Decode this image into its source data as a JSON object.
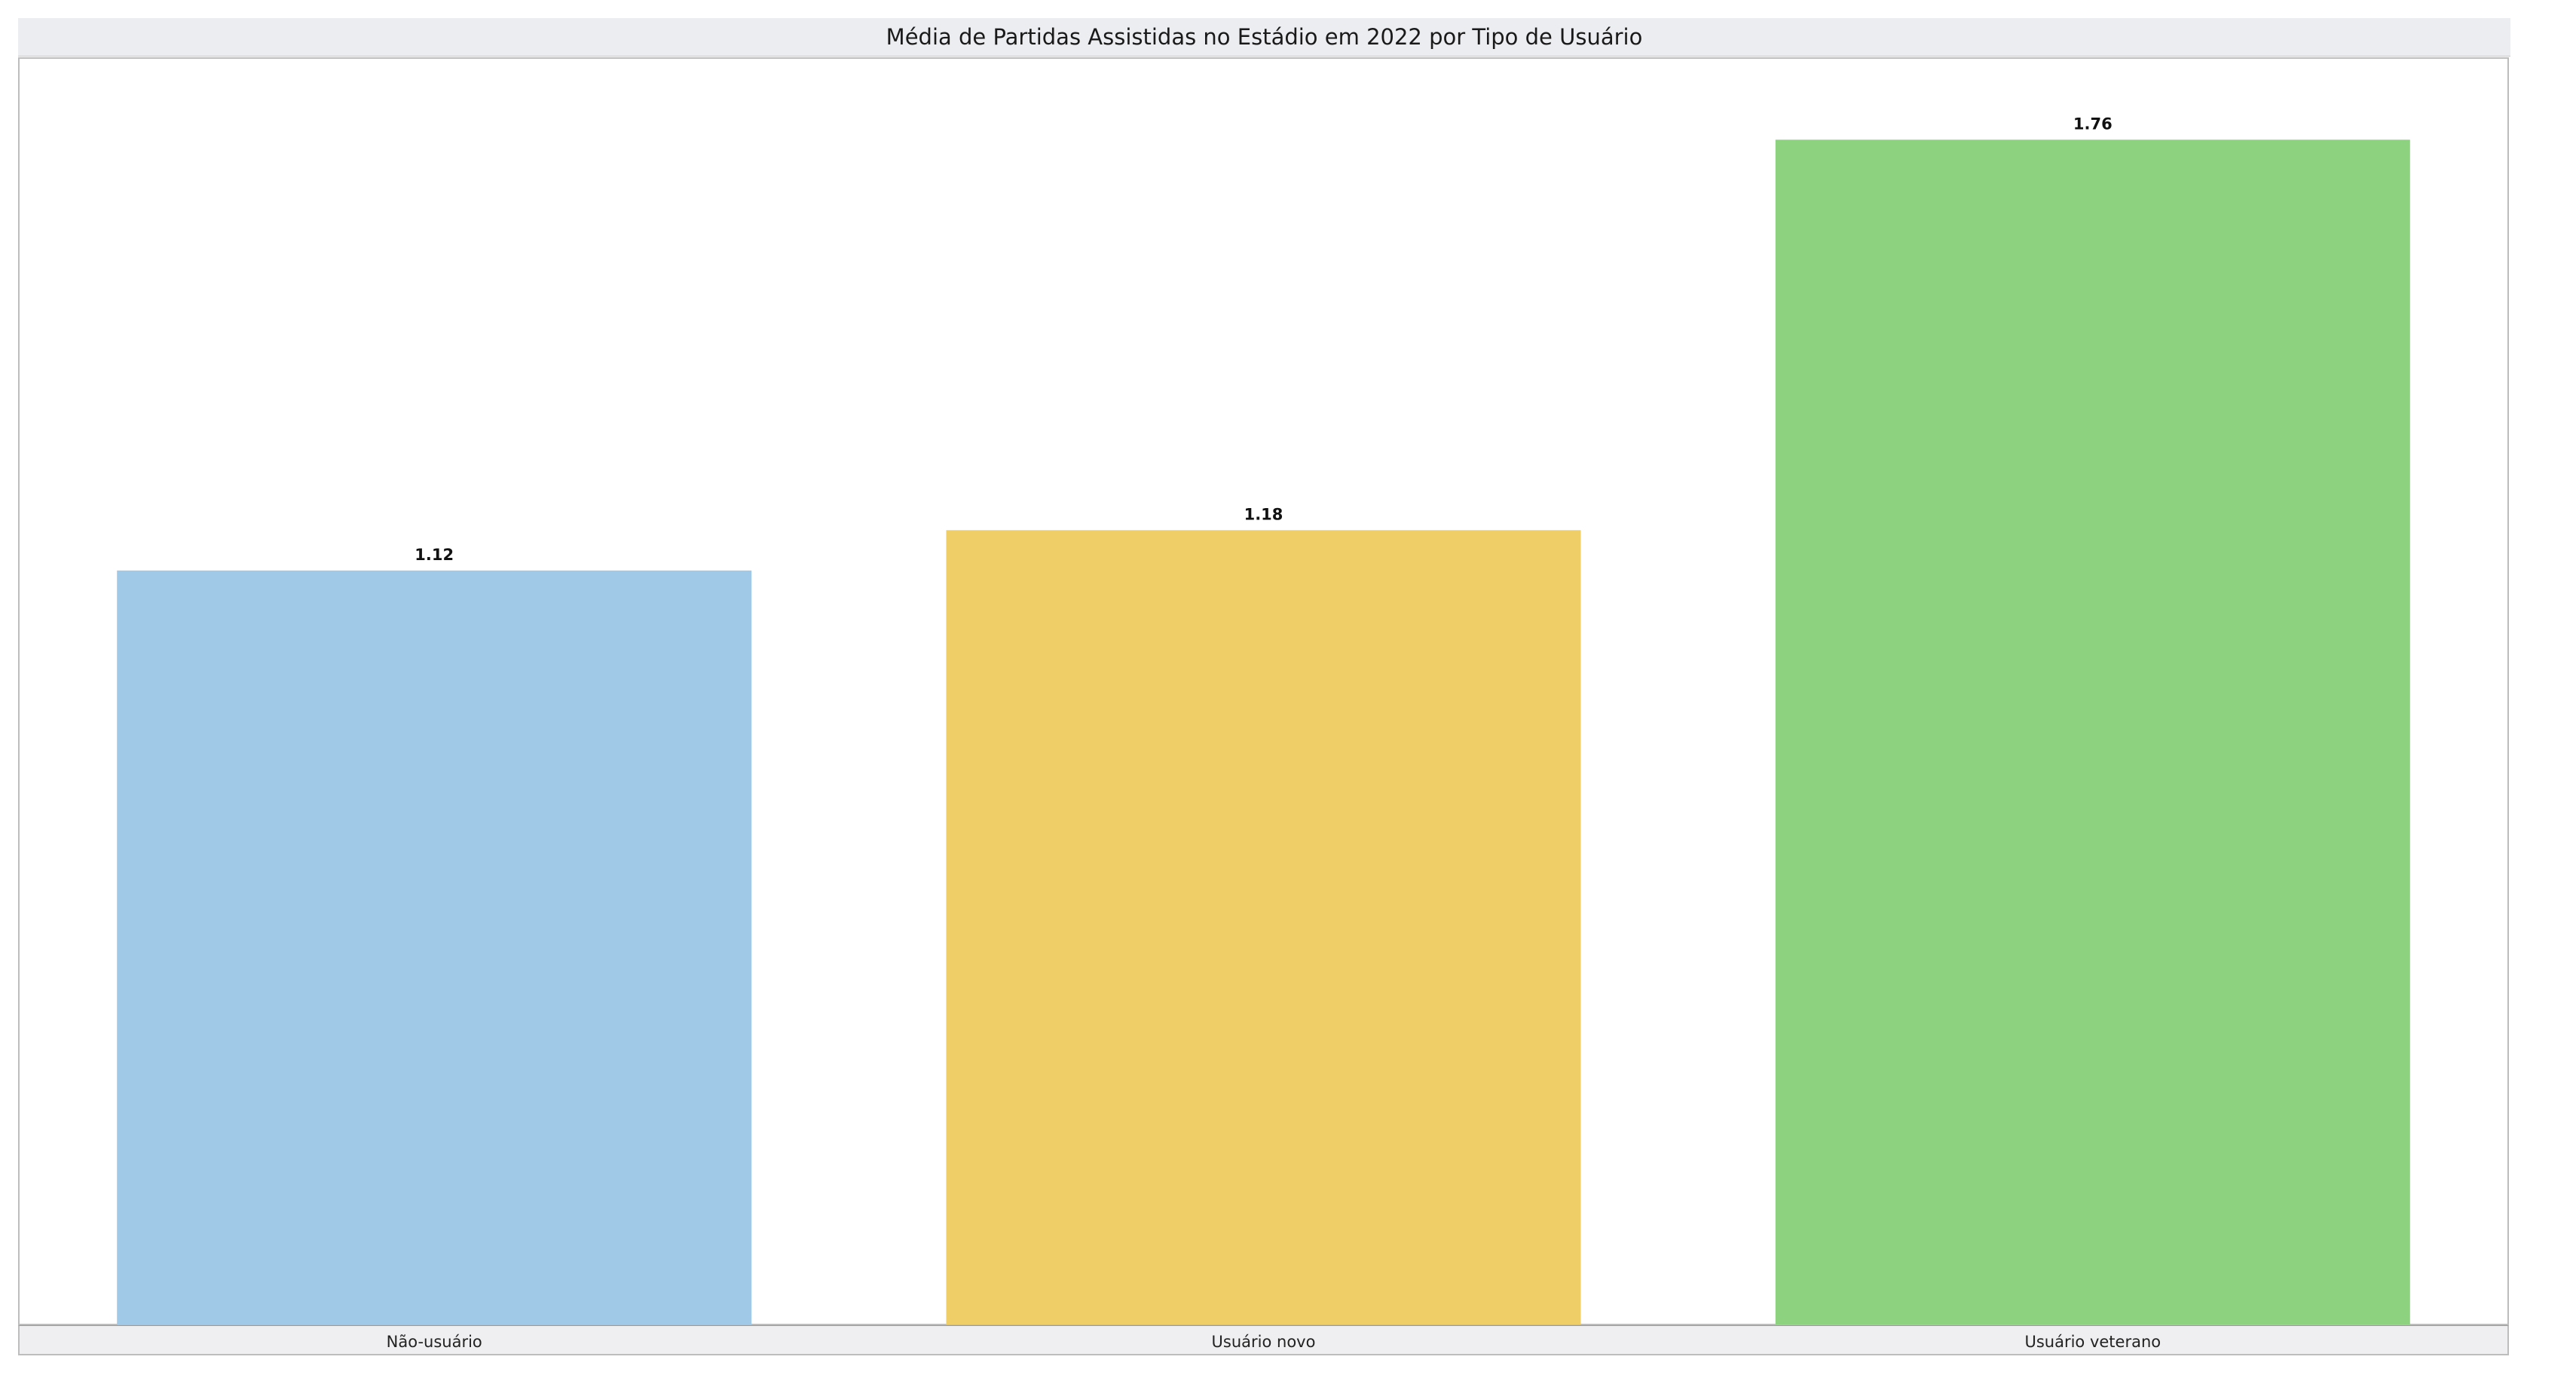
{
  "chart_data": {
    "type": "bar",
    "title": "Média de Partidas Assistidas no Estádio em 2022 por Tipo de Usuário",
    "xlabel": "",
    "ylabel": "",
    "categories": [
      "Não-usuário",
      "Usuário novo",
      "Usuário veterano"
    ],
    "values": [
      1.12,
      1.18,
      1.76
    ],
    "value_labels": [
      "1.12",
      "1.18",
      "1.76"
    ],
    "colors": [
      "#a0c9e8",
      "#efcd67",
      "#8dd27f"
    ],
    "ylim": [
      0,
      1.85
    ],
    "grid": false,
    "legend": "none"
  }
}
